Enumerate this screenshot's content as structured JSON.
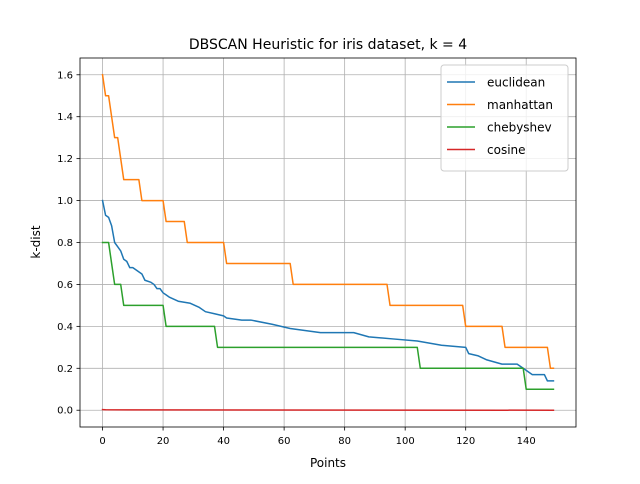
{
  "chart_data": {
    "type": "line",
    "title": "DBSCAN Heuristic for iris dataset, k = 4",
    "xlabel": "Points",
    "ylabel": "k-dist",
    "xlim": [
      -7.45,
      156.45
    ],
    "ylim": [
      -0.08,
      1.68
    ],
    "xticks": [
      0,
      20,
      40,
      60,
      80,
      100,
      120,
      140
    ],
    "yticks": [
      0.0,
      0.2,
      0.4,
      0.6,
      0.8,
      1.0,
      1.2,
      1.4,
      1.6
    ],
    "grid": true,
    "legend_position": "upper right",
    "series": [
      {
        "name": "euclidean",
        "color": "#1f77b4",
        "x": [
          0,
          1,
          2,
          3,
          4,
          5,
          6,
          7,
          8,
          9,
          10,
          12,
          13,
          14,
          16,
          17,
          18,
          19,
          20,
          21,
          22,
          25,
          29,
          32,
          34,
          37,
          40,
          41,
          46,
          49,
          56,
          62,
          72,
          83,
          88,
          96,
          104,
          108,
          112,
          120,
          121,
          124,
          127,
          132,
          137,
          139,
          140,
          141,
          142,
          146,
          147,
          149
        ],
        "y": [
          1.0,
          0.93,
          0.92,
          0.88,
          0.8,
          0.78,
          0.76,
          0.72,
          0.71,
          0.68,
          0.68,
          0.66,
          0.65,
          0.62,
          0.61,
          0.6,
          0.58,
          0.58,
          0.56,
          0.55,
          0.54,
          0.52,
          0.51,
          0.49,
          0.47,
          0.46,
          0.45,
          0.44,
          0.43,
          0.43,
          0.41,
          0.39,
          0.37,
          0.37,
          0.35,
          0.34,
          0.33,
          0.32,
          0.31,
          0.3,
          0.27,
          0.26,
          0.24,
          0.22,
          0.22,
          0.2,
          0.19,
          0.18,
          0.17,
          0.17,
          0.14,
          0.14
        ]
      },
      {
        "name": "manhattan",
        "color": "#ff7f0e",
        "x": [
          0,
          1,
          2,
          3,
          4,
          5,
          6,
          7,
          8,
          12,
          13,
          20,
          21,
          27,
          28,
          40,
          41,
          62,
          63,
          94,
          95,
          119,
          120,
          132,
          133,
          147,
          148,
          149
        ],
        "y": [
          1.6,
          1.5,
          1.5,
          1.4,
          1.3,
          1.3,
          1.2,
          1.1,
          1.1,
          1.1,
          1.0,
          1.0,
          0.9,
          0.9,
          0.8,
          0.8,
          0.7,
          0.7,
          0.6,
          0.6,
          0.5,
          0.5,
          0.4,
          0.4,
          0.3,
          0.3,
          0.2,
          0.2
        ]
      },
      {
        "name": "chebyshev",
        "color": "#2ca02c",
        "x": [
          0,
          1,
          2,
          3,
          4,
          5,
          6,
          7,
          8,
          20,
          21,
          37,
          38,
          104,
          105,
          139,
          140,
          149
        ],
        "y": [
          0.8,
          0.8,
          0.8,
          0.7,
          0.6,
          0.6,
          0.6,
          0.5,
          0.5,
          0.5,
          0.4,
          0.4,
          0.3,
          0.3,
          0.2,
          0.2,
          0.1,
          0.1
        ]
      },
      {
        "name": "cosine",
        "color": "#d62728",
        "x": [
          0,
          1,
          149
        ],
        "y": [
          0.003,
          0.002,
          0.0
        ]
      }
    ]
  }
}
